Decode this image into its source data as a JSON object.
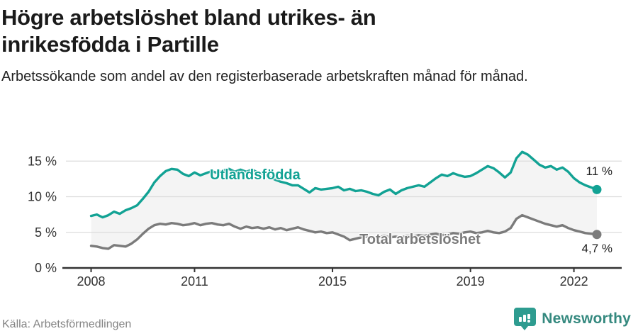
{
  "header": {
    "title": "Högre arbetslöshet bland utrikes- än inrikesfödda i Partille",
    "subtitle": "Arbetssökande som andel av den registerbaserade arbetskraften månad för månad."
  },
  "footer": {
    "source": "Källa: Arbetsförmedlingen",
    "brand": "Newsworthy",
    "brand_color": "#35897f",
    "logo_color": "#2e9c90"
  },
  "chart_data": {
    "type": "line",
    "title": "Högre arbetslöshet bland utrikes- än inrikesfödda i Partille",
    "subtitle": "Arbetssökande som andel av den registerbaserade arbetskraften månad för månad.",
    "xlabel": "",
    "ylabel": "",
    "x_start_year": 2008,
    "x_step_months": 2,
    "x_end": "2022",
    "axis": {
      "y_ticks": [
        0,
        5,
        10,
        15
      ],
      "y_suffix": " %",
      "x_ticks": [
        2008,
        2011,
        2015,
        2019,
        2022
      ],
      "ylim": [
        0,
        17.5
      ],
      "grid": true,
      "gridline_color": "#dcdcdc",
      "axis_color": "#333333"
    },
    "band_between_series": true,
    "band_color": "#f4f4f4",
    "series": [
      {
        "name": "Utlandsfödda",
        "color": "#12a294",
        "end_label": "11 %",
        "end_value": 11,
        "values": [
          7.3,
          7.5,
          7.1,
          7.4,
          7.9,
          7.6,
          8.1,
          8.4,
          8.8,
          9.7,
          10.7,
          12.0,
          12.9,
          13.6,
          13.9,
          13.8,
          13.2,
          12.9,
          13.4,
          13.0,
          13.3,
          13.6,
          13.3,
          13.7,
          13.9,
          13.5,
          13.8,
          13.5,
          13.8,
          13.4,
          13.2,
          12.8,
          12.4,
          12.1,
          11.9,
          11.6,
          11.6,
          11.1,
          10.6,
          11.2,
          11.0,
          11.1,
          11.2,
          11.4,
          10.9,
          11.1,
          10.8,
          10.9,
          10.7,
          10.4,
          10.2,
          10.7,
          11.0,
          10.4,
          10.9,
          11.2,
          11.4,
          11.6,
          11.4,
          12.0,
          12.6,
          13.1,
          12.9,
          13.3,
          13.0,
          12.8,
          12.9,
          13.3,
          13.8,
          14.3,
          14.0,
          13.4,
          12.7,
          13.4,
          15.4,
          16.3,
          15.9,
          15.2,
          14.5,
          14.1,
          14.3,
          13.8,
          14.1,
          13.5,
          12.6,
          12.0,
          11.6,
          11.3,
          11.0
        ]
      },
      {
        "name": "Total arbetslöshet",
        "color": "#7b7b7b",
        "end_label": "4,7 %",
        "end_value": 4.7,
        "values": [
          3.1,
          3.0,
          2.8,
          2.7,
          3.2,
          3.1,
          3.0,
          3.4,
          4.0,
          4.8,
          5.5,
          6.0,
          6.2,
          6.1,
          6.3,
          6.2,
          6.0,
          6.1,
          6.3,
          6.0,
          6.2,
          6.3,
          6.1,
          6.0,
          6.2,
          5.8,
          5.5,
          5.8,
          5.6,
          5.7,
          5.5,
          5.7,
          5.4,
          5.6,
          5.3,
          5.5,
          5.7,
          5.4,
          5.2,
          5.0,
          5.1,
          4.9,
          5.0,
          4.7,
          4.4,
          3.9,
          4.1,
          4.3,
          4.4,
          4.2,
          4.3,
          4.5,
          4.3,
          4.4,
          4.3,
          4.5,
          4.4,
          4.6,
          4.5,
          4.7,
          4.8,
          4.6,
          4.7,
          4.9,
          4.8,
          5.0,
          5.1,
          4.9,
          5.0,
          5.2,
          5.0,
          4.9,
          5.1,
          5.6,
          6.9,
          7.4,
          7.1,
          6.8,
          6.5,
          6.2,
          6.0,
          5.8,
          6.0,
          5.6,
          5.3,
          5.1,
          4.9,
          4.8,
          4.7
        ]
      }
    ],
    "legend_position": "inline-labels"
  }
}
